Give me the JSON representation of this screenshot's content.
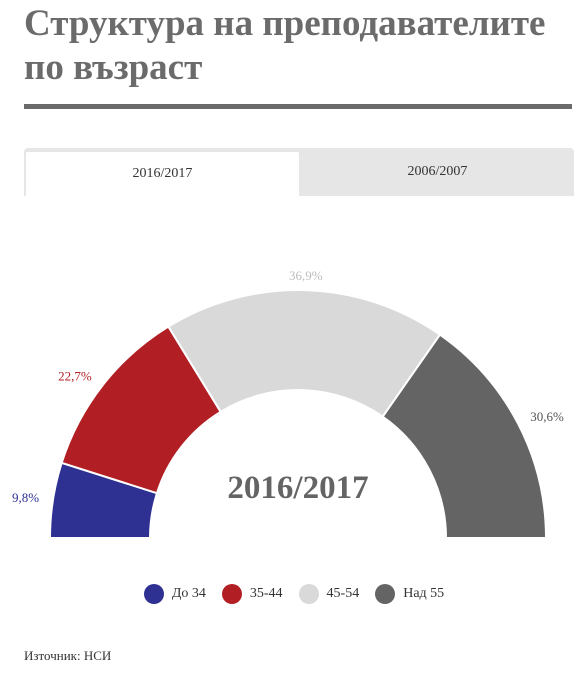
{
  "title": "Структура на преподавателите по възраст",
  "tabs": [
    {
      "label": "2016/2017",
      "active": true
    },
    {
      "label": "2006/2007",
      "active": false
    }
  ],
  "chart_data": {
    "type": "pie",
    "variant": "semicircle-donut",
    "center_label": "2016/2017",
    "categories": [
      "До 34",
      "35-44",
      "45-54",
      "Над 55"
    ],
    "values": [
      9.8,
      22.7,
      36.9,
      30.6
    ],
    "data_labels": [
      "9,8%",
      "22,7%",
      "36,9%",
      "30,6%"
    ],
    "colors": [
      "#2e3192",
      "#b11f24",
      "#d9d9d9",
      "#646464"
    ],
    "label_colors": [
      "#2e3192",
      "#b11f24",
      "#bdbdbd",
      "#555555"
    ],
    "legend_position": "bottom"
  },
  "source": "Източник: НСИ"
}
